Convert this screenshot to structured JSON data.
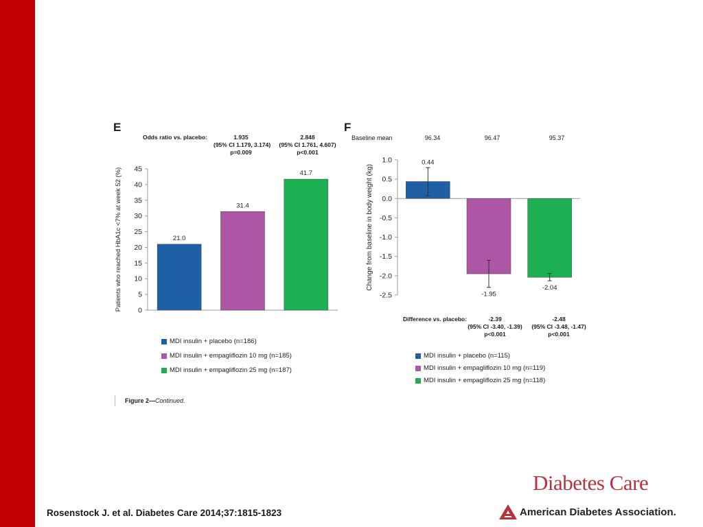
{
  "chart_data": [
    {
      "panel": "E",
      "type": "bar",
      "categories": [
        "MDI insulin + placebo (n=186)",
        "MDI insulin + empagliflozin 10 mg (n=185)",
        "MDI insulin + empagliflozin 25 mg (n=187)"
      ],
      "values": [
        21.0,
        31.4,
        41.7
      ],
      "value_labels": [
        "21.0",
        "31.4",
        "41.7"
      ],
      "colors": [
        "#1f5fa6",
        "#ad56a5",
        "#1db052"
      ],
      "ylabel": "Patients who reached HbA1c <7% at week 52 (%)",
      "ylim": [
        0,
        45
      ],
      "yticks": [
        0,
        5,
        10,
        15,
        20,
        25,
        30,
        35,
        40,
        45
      ],
      "grid": false,
      "header_label": "Odds ratio vs. placebo:",
      "header_values": [
        [
          "1.935",
          "(95% CI 1.179, 3.174)",
          "p=0.009"
        ],
        [
          "2.848",
          "(95% CI 1.761, 4.607)",
          "p<0.001"
        ]
      ],
      "legend": [
        "MDI insulin + placebo (n=186)",
        "MDI insulin + empagliflozin 10 mg (n=185)",
        "MDI insulin + empagliflozin 25 mg (n=187)"
      ]
    },
    {
      "panel": "F",
      "type": "bar",
      "categories": [
        "MDI insulin + placebo (n=115)",
        "MDI insulin + empagliflozin 10 mg (n=119)",
        "MDI insulin + empagliflozin 25 mg (n=118)"
      ],
      "values": [
        0.44,
        -1.95,
        -2.04
      ],
      "value_labels": [
        "0.44",
        "-1.95",
        "-2.04"
      ],
      "error_bars": [
        [
          0.07,
          0.8
        ],
        [
          -2.3,
          -1.6
        ],
        [
          -2.13,
          -1.94
        ]
      ],
      "colors": [
        "#1f5fa6",
        "#ad56a5",
        "#1db052"
      ],
      "ylabel": "Change from baseline in body weight (kg)",
      "ylim": [
        -2.5,
        1.0
      ],
      "yticks": [
        "1.0",
        "0.5",
        "0.0",
        "-0.5",
        "-1.0",
        "-1.5",
        "-2.0",
        "-2.5"
      ],
      "grid": false,
      "baseline_label": "Baseline mean",
      "baseline_values": [
        "96.34",
        "96.47",
        "95.37"
      ],
      "footer_label": "Difference vs. placebo:",
      "footer_values": [
        [
          "-2.39",
          "(95% CI -3.40, -1.39)",
          "p<0.001"
        ],
        [
          "-2.48",
          "(95% CI -3.48, -1.47)",
          "p<0.001"
        ]
      ],
      "legend": [
        "MDI insulin + placebo (n=115)",
        "MDI insulin + empagliflozin 10 mg (n=119)",
        "MDI insulin + empagliflozin 25 mg (n=118)"
      ]
    }
  ],
  "caption": {
    "prefix": "Figure 2—",
    "suffix": "Continued."
  },
  "citation": "Rosenstock J. et al. Diabetes Care 2014;37:1815-1823",
  "branding": {
    "journal": "Diabetes Care",
    "association": "American Diabetes Association."
  },
  "colors": {
    "accent_red": "#c00000",
    "logo_red": "#b5333a"
  }
}
